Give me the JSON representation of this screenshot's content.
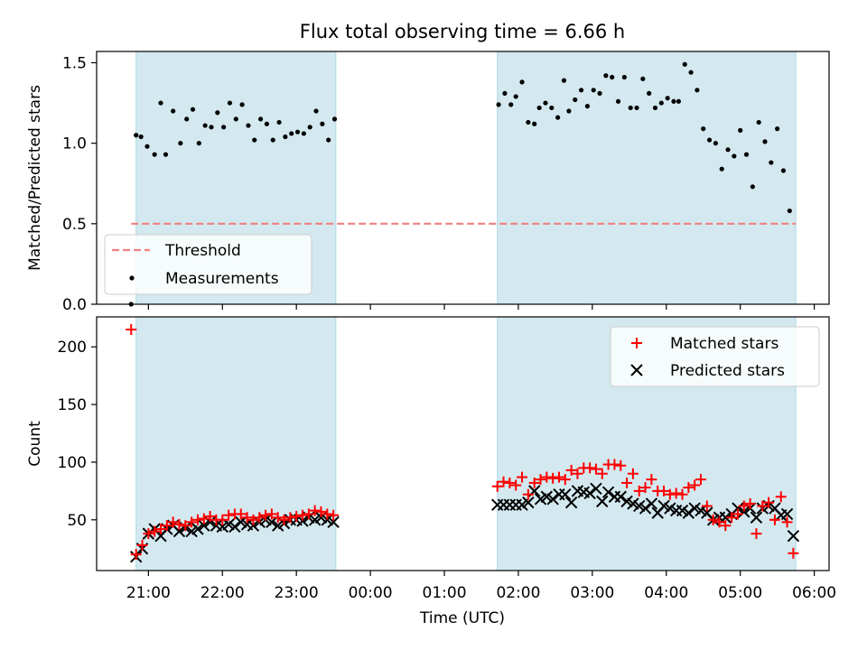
{
  "chart_data": {
    "type": "scatter",
    "title": "Flux total observing time = 6.66 h",
    "xlabel": "Time (UTC)",
    "x_ticks": [
      {
        "t": 0,
        "label": "21:00"
      },
      {
        "t": 60,
        "label": "22:00"
      },
      {
        "t": 120,
        "label": "23:00"
      },
      {
        "t": 180,
        "label": "00:00"
      },
      {
        "t": 240,
        "label": "01:00"
      },
      {
        "t": 300,
        "label": "02:00"
      },
      {
        "t": 360,
        "label": "03:00"
      },
      {
        "t": 420,
        "label": "04:00"
      },
      {
        "t": 480,
        "label": "05:00"
      },
      {
        "t": 540,
        "label": "06:00"
      }
    ],
    "xlim": [
      -42,
      552
    ],
    "observing_windows": [
      [
        -10,
        152
      ],
      [
        283,
        525
      ]
    ],
    "colors": {
      "window": "#d3e9ef",
      "threshold": "#f08080",
      "measurements": "#000000",
      "matched": "#ff0000",
      "predicted": "#000000"
    },
    "panels": [
      {
        "ylabel": "Matched/Predicted stars",
        "ylim": [
          0,
          1.57
        ],
        "y_ticks": [
          {
            "v": 0.0,
            "label": "0.0"
          },
          {
            "v": 0.5,
            "label": "0.5"
          },
          {
            "v": 1.0,
            "label": "1.0"
          },
          {
            "v": 1.5,
            "label": "1.5"
          }
        ],
        "legend": {
          "position": "lower-left",
          "entries": [
            {
              "label": "Threshold",
              "type": "dashed-line"
            },
            {
              "label": "Measurements",
              "type": "dot"
            }
          ]
        },
        "threshold": {
          "value": 0.5,
          "x_range": [
            -14,
            525
          ]
        },
        "measurements": [
          [
            -14,
            0.0
          ],
          [
            -10,
            1.05
          ],
          [
            -6,
            1.04
          ],
          [
            -1,
            0.98
          ],
          [
            5,
            0.93
          ],
          [
            10,
            1.25
          ],
          [
            14,
            0.93
          ],
          [
            20,
            1.2
          ],
          [
            26,
            1.0
          ],
          [
            31,
            1.15
          ],
          [
            36,
            1.21
          ],
          [
            41,
            1.0
          ],
          [
            46,
            1.11
          ],
          [
            51,
            1.1
          ],
          [
            56,
            1.19
          ],
          [
            61,
            1.1
          ],
          [
            66,
            1.25
          ],
          [
            71,
            1.15
          ],
          [
            76,
            1.24
          ],
          [
            81,
            1.11
          ],
          [
            86,
            1.02
          ],
          [
            91,
            1.15
          ],
          [
            96,
            1.12
          ],
          [
            101,
            1.02
          ],
          [
            106,
            1.13
          ],
          [
            111,
            1.04
          ],
          [
            116,
            1.06
          ],
          [
            121,
            1.07
          ],
          [
            126,
            1.06
          ],
          [
            131,
            1.1
          ],
          [
            136,
            1.2
          ],
          [
            141,
            1.12
          ],
          [
            146,
            1.02
          ],
          [
            151,
            1.15
          ],
          [
            284,
            1.24
          ],
          [
            289,
            1.31
          ],
          [
            294,
            1.24
          ],
          [
            298,
            1.29
          ],
          [
            303,
            1.38
          ],
          [
            308,
            1.13
          ],
          [
            313,
            1.12
          ],
          [
            317,
            1.22
          ],
          [
            322,
            1.25
          ],
          [
            327,
            1.22
          ],
          [
            332,
            1.16
          ],
          [
            337,
            1.39
          ],
          [
            341,
            1.2
          ],
          [
            346,
            1.27
          ],
          [
            351,
            1.33
          ],
          [
            356,
            1.23
          ],
          [
            361,
            1.33
          ],
          [
            366,
            1.31
          ],
          [
            371,
            1.42
          ],
          [
            376,
            1.41
          ],
          [
            381,
            1.26
          ],
          [
            386,
            1.41
          ],
          [
            391,
            1.22
          ],
          [
            396,
            1.22
          ],
          [
            401,
            1.4
          ],
          [
            406,
            1.31
          ],
          [
            411,
            1.22
          ],
          [
            416,
            1.25
          ],
          [
            421,
            1.28
          ],
          [
            426,
            1.26
          ],
          [
            430,
            1.26
          ],
          [
            435,
            1.49
          ],
          [
            440,
            1.44
          ],
          [
            445,
            1.33
          ],
          [
            450,
            1.09
          ],
          [
            455,
            1.02
          ],
          [
            460,
            1.0
          ],
          [
            465,
            0.84
          ],
          [
            470,
            0.96
          ],
          [
            475,
            0.92
          ],
          [
            480,
            1.08
          ],
          [
            485,
            0.93
          ],
          [
            490,
            0.73
          ],
          [
            495,
            1.13
          ],
          [
            500,
            1.01
          ],
          [
            505,
            0.88
          ],
          [
            510,
            1.09
          ],
          [
            515,
            0.83
          ],
          [
            520,
            0.58
          ]
        ]
      },
      {
        "ylabel": "Count",
        "ylim": [
          6,
          226
        ],
        "y_ticks": [
          {
            "v": 50,
            "label": "50"
          },
          {
            "v": 100,
            "label": "100"
          },
          {
            "v": 150,
            "label": "150"
          },
          {
            "v": 200,
            "label": "200"
          }
        ],
        "legend": {
          "position": "upper-right",
          "entries": [
            {
              "label": "Matched stars",
              "type": "plus"
            },
            {
              "label": "Predicted stars",
              "type": "cross"
            }
          ]
        },
        "series": [
          {
            "name": "Matched stars",
            "marker": "plus",
            "points": [
              [
                -14,
                215
              ],
              [
                -10,
                20
              ],
              [
                -5,
                28
              ],
              [
                0,
                38
              ],
              [
                5,
                40
              ],
              [
                10,
                42
              ],
              [
                15,
                45
              ],
              [
                20,
                48
              ],
              [
                25,
                46
              ],
              [
                30,
                45
              ],
              [
                35,
                48
              ],
              [
                40,
                50
              ],
              [
                45,
                51
              ],
              [
                50,
                53
              ],
              [
                55,
                50
              ],
              [
                60,
                50
              ],
              [
                65,
                54
              ],
              [
                70,
                55
              ],
              [
                75,
                55
              ],
              [
                80,
                52
              ],
              [
                85,
                50
              ],
              [
                90,
                52
              ],
              [
                95,
                54
              ],
              [
                100,
                55
              ],
              [
                105,
                52
              ],
              [
                110,
                50
              ],
              [
                115,
                52
              ],
              [
                120,
                53
              ],
              [
                125,
                54
              ],
              [
                130,
                55
              ],
              [
                135,
                58
              ],
              [
                140,
                57
              ],
              [
                145,
                55
              ],
              [
                150,
                54
              ],
              [
                283,
                79
              ],
              [
                288,
                83
              ],
              [
                293,
                82
              ],
              [
                298,
                80
              ],
              [
                303,
                87
              ],
              [
                308,
                72
              ],
              [
                313,
                82
              ],
              [
                318,
                85
              ],
              [
                323,
                87
              ],
              [
                328,
                86
              ],
              [
                333,
                87
              ],
              [
                338,
                85
              ],
              [
                343,
                93
              ],
              [
                348,
                90
              ],
              [
                353,
                95
              ],
              [
                358,
                95
              ],
              [
                363,
                94
              ],
              [
                368,
                90
              ],
              [
                373,
                98
              ],
              [
                378,
                98
              ],
              [
                383,
                97
              ],
              [
                388,
                82
              ],
              [
                393,
                90
              ],
              [
                398,
                75
              ],
              [
                403,
                78
              ],
              [
                408,
                85
              ],
              [
                413,
                75
              ],
              [
                418,
                75
              ],
              [
                423,
                72
              ],
              [
                428,
                73
              ],
              [
                433,
                72
              ],
              [
                438,
                78
              ],
              [
                443,
                80
              ],
              [
                448,
                85
              ],
              [
                453,
                62
              ],
              [
                458,
                50
              ],
              [
                463,
                48
              ],
              [
                468,
                45
              ],
              [
                473,
                52
              ],
              [
                478,
                55
              ],
              [
                483,
                62
              ],
              [
                488,
                64
              ],
              [
                493,
                38
              ],
              [
                498,
                62
              ],
              [
                503,
                65
              ],
              [
                508,
                50
              ],
              [
                513,
                70
              ],
              [
                518,
                48
              ],
              [
                523,
                21
              ]
            ]
          },
          {
            "name": "Predicted stars",
            "marker": "cross",
            "points": [
              [
                -10,
                18
              ],
              [
                -5,
                25
              ],
              [
                0,
                38
              ],
              [
                5,
                42
              ],
              [
                10,
                36
              ],
              [
                15,
                42
              ],
              [
                20,
                45
              ],
              [
                25,
                40
              ],
              [
                30,
                43
              ],
              [
                35,
                40
              ],
              [
                40,
                42
              ],
              [
                45,
                45
              ],
              [
                50,
                48
              ],
              [
                55,
                45
              ],
              [
                60,
                44
              ],
              [
                65,
                46
              ],
              [
                70,
                44
              ],
              [
                75,
                48
              ],
              [
                80,
                46
              ],
              [
                85,
                45
              ],
              [
                90,
                48
              ],
              [
                95,
                50
              ],
              [
                100,
                48
              ],
              [
                105,
                45
              ],
              [
                110,
                47
              ],
              [
                115,
                50
              ],
              [
                120,
                50
              ],
              [
                125,
                49
              ],
              [
                130,
                52
              ],
              [
                135,
                50
              ],
              [
                140,
                52
              ],
              [
                145,
                50
              ],
              [
                150,
                48
              ],
              [
                283,
                63
              ],
              [
                288,
                63
              ],
              [
                293,
                63
              ],
              [
                298,
                63
              ],
              [
                303,
                63
              ],
              [
                308,
                65
              ],
              [
                313,
                75
              ],
              [
                318,
                68
              ],
              [
                323,
                70
              ],
              [
                328,
                68
              ],
              [
                333,
                72
              ],
              [
                338,
                72
              ],
              [
                343,
                65
              ],
              [
                348,
                75
              ],
              [
                353,
                74
              ],
              [
                358,
                73
              ],
              [
                363,
                77
              ],
              [
                368,
                66
              ],
              [
                373,
                74
              ],
              [
                378,
                70
              ],
              [
                383,
                70
              ],
              [
                388,
                66
              ],
              [
                393,
                64
              ],
              [
                398,
                62
              ],
              [
                403,
                60
              ],
              [
                408,
                64
              ],
              [
                413,
                56
              ],
              [
                418,
                62
              ],
              [
                423,
                60
              ],
              [
                428,
                58
              ],
              [
                433,
                58
              ],
              [
                438,
                56
              ],
              [
                443,
                60
              ],
              [
                448,
                58
              ],
              [
                453,
                56
              ],
              [
                458,
                50
              ],
              [
                463,
                52
              ],
              [
                468,
                52
              ],
              [
                473,
                55
              ],
              [
                478,
                60
              ],
              [
                483,
                57
              ],
              [
                488,
                60
              ],
              [
                493,
                52
              ],
              [
                498,
                60
              ],
              [
                503,
                62
              ],
              [
                508,
                60
              ],
              [
                513,
                54
              ],
              [
                518,
                55
              ],
              [
                523,
                36
              ]
            ]
          }
        ]
      }
    ]
  }
}
